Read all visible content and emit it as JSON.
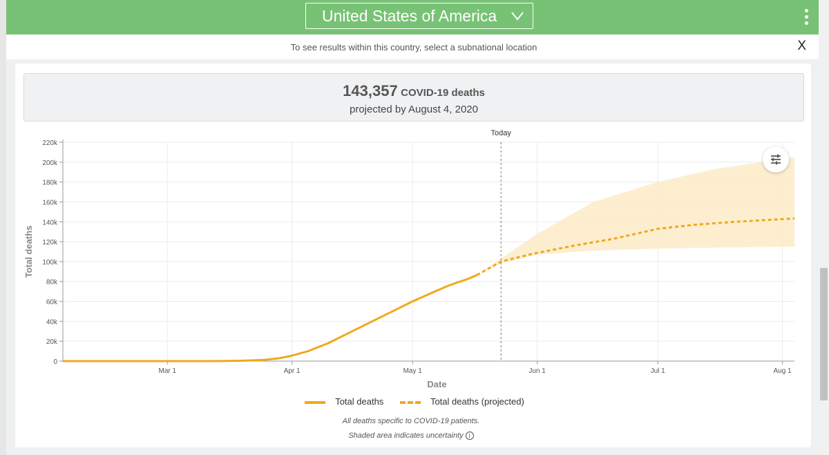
{
  "header": {
    "country": "United States of America",
    "subnational_text": "To see results within this country, select a subnational location",
    "close_label": "X"
  },
  "summary": {
    "value": "143,357",
    "label": "COVID-19 deaths",
    "subtext": "projected by August 4, 2020"
  },
  "colors": {
    "header_green": "#78c276",
    "series": "#f0a81c",
    "uncertainty": "#fdebc8"
  },
  "chart_data": {
    "type": "line",
    "x_type": "date",
    "xlabel": "Date",
    "ylabel": "Total deaths",
    "xlim": [
      "2020-02-04",
      "2020-08-04"
    ],
    "ylim": [
      0,
      220000
    ],
    "x_ticks": [
      {
        "date": "2020-03-01",
        "label": "Mar 1"
      },
      {
        "date": "2020-04-01",
        "label": "Apr 1"
      },
      {
        "date": "2020-05-01",
        "label": "May 1"
      },
      {
        "date": "2020-06-01",
        "label": "Jun 1"
      },
      {
        "date": "2020-07-01",
        "label": "Jul 1"
      },
      {
        "date": "2020-08-01",
        "label": "Aug 1"
      }
    ],
    "y_ticks": [
      {
        "value": 0,
        "label": "0"
      },
      {
        "value": 20000,
        "label": "20k"
      },
      {
        "value": 40000,
        "label": "40k"
      },
      {
        "value": 60000,
        "label": "60k"
      },
      {
        "value": 80000,
        "label": "80k"
      },
      {
        "value": 100000,
        "label": "100k"
      },
      {
        "value": 120000,
        "label": "120k"
      },
      {
        "value": 140000,
        "label": "140k"
      },
      {
        "value": 160000,
        "label": "160k"
      },
      {
        "value": 180000,
        "label": "180k"
      },
      {
        "value": 200000,
        "label": "200k"
      },
      {
        "value": 220000,
        "label": "220k"
      }
    ],
    "today": {
      "date": "2020-05-23",
      "label": "Today"
    },
    "grid": true,
    "series": [
      {
        "name": "Total deaths",
        "style": "solid",
        "points": [
          [
            "2020-02-04",
            0
          ],
          [
            "2020-03-01",
            0
          ],
          [
            "2020-03-10",
            30
          ],
          [
            "2020-03-15",
            100
          ],
          [
            "2020-03-20",
            400
          ],
          [
            "2020-03-25",
            1200
          ],
          [
            "2020-03-29",
            3000
          ],
          [
            "2020-04-01",
            5500
          ],
          [
            "2020-04-05",
            10000
          ],
          [
            "2020-04-10",
            18000
          ],
          [
            "2020-04-15",
            28000
          ],
          [
            "2020-04-20",
            38000
          ],
          [
            "2020-04-25",
            48000
          ],
          [
            "2020-05-01",
            60000
          ],
          [
            "2020-05-06",
            69000
          ],
          [
            "2020-05-10",
            76000
          ],
          [
            "2020-05-15",
            83000
          ],
          [
            "2020-05-17",
            86500
          ]
        ]
      },
      {
        "name": "Total deaths (projected)",
        "style": "dashed",
        "points": [
          [
            "2020-05-17",
            86500
          ],
          [
            "2020-05-23",
            100000
          ],
          [
            "2020-05-31",
            108000
          ],
          [
            "2020-06-10",
            116000
          ],
          [
            "2020-06-20",
            123000
          ],
          [
            "2020-07-01",
            133000
          ],
          [
            "2020-07-10",
            137000
          ],
          [
            "2020-07-20",
            140000
          ],
          [
            "2020-07-31",
            142500
          ],
          [
            "2020-08-04",
            143357
          ]
        ]
      }
    ],
    "uncertainty": {
      "upper": [
        [
          "2020-05-17",
          86500
        ],
        [
          "2020-05-23",
          103000
        ],
        [
          "2020-06-01",
          128000
        ],
        [
          "2020-06-15",
          160000
        ],
        [
          "2020-07-01",
          180000
        ],
        [
          "2020-07-15",
          193000
        ],
        [
          "2020-08-01",
          203000
        ],
        [
          "2020-08-04",
          205000
        ]
      ],
      "lower": [
        [
          "2020-05-17",
          86500
        ],
        [
          "2020-05-23",
          98000
        ],
        [
          "2020-06-01",
          107000
        ],
        [
          "2020-06-15",
          111000
        ],
        [
          "2020-07-01",
          113000
        ],
        [
          "2020-07-15",
          114000
        ],
        [
          "2020-08-01",
          115000
        ],
        [
          "2020-08-04",
          115000
        ]
      ]
    }
  },
  "legend": {
    "items": [
      {
        "label": "Total deaths",
        "style": "solid"
      },
      {
        "label": "Total deaths (projected)",
        "style": "dashed"
      }
    ]
  },
  "notes": {
    "line1": "All deaths specific to COVID-19 patients.",
    "line2": "Shaded area indicates uncertainty",
    "info_glyph": "i"
  },
  "icons": {
    "dropdown": "chevron-down-icon",
    "menu": "kebab-menu-icon",
    "settings": "sliders-icon",
    "info": "info-icon"
  }
}
